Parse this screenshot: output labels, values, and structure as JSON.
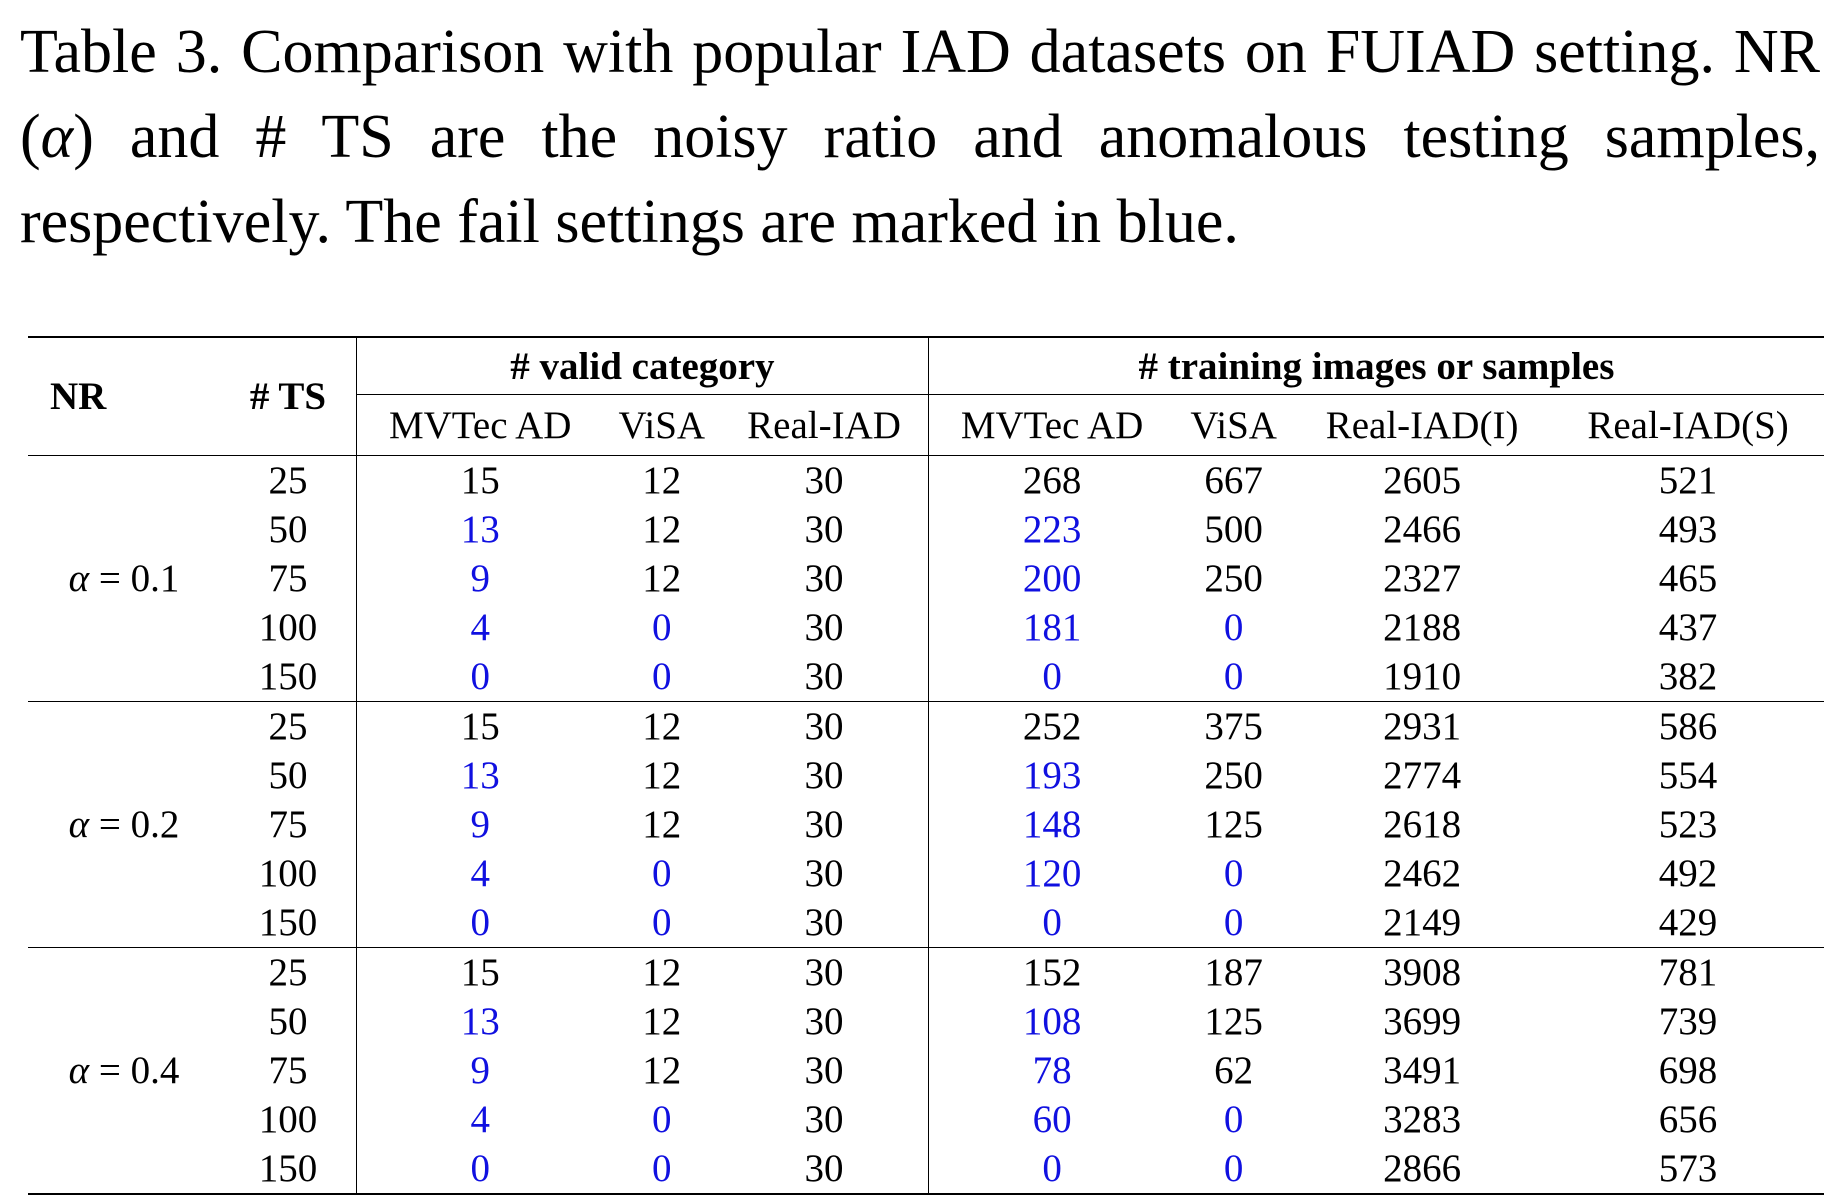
{
  "caption": {
    "part1": "Table 3.  Comparison with popular IAD datasets on FUIAD setting.  NR (",
    "alpha": "α",
    "part2": ") and # TS are the noisy ratio and anomalous testing samples, respectively. The fail settings are marked in blue."
  },
  "table": {
    "headers": {
      "nr": "NR",
      "ts": "# TS",
      "group_valid": "# valid category",
      "group_training": "# training images or samples",
      "columns": [
        "MVTec AD",
        "ViSA",
        "Real-IAD",
        "MVTec AD",
        "ViSA",
        "Real-IAD(I)",
        "Real-IAD(S)"
      ]
    },
    "fail_color": "#1010e0",
    "groups": [
      {
        "nr_symbol": "α",
        "nr_rest": " = 0.1",
        "rows": [
          {
            "ts": "25",
            "values": [
              "15",
              "12",
              "30",
              "268",
              "667",
              "2605",
              "521"
            ],
            "fail": [
              false,
              false,
              false,
              false,
              false,
              false,
              false
            ]
          },
          {
            "ts": "50",
            "values": [
              "13",
              "12",
              "30",
              "223",
              "500",
              "2466",
              "493"
            ],
            "fail": [
              true,
              false,
              false,
              true,
              false,
              false,
              false
            ]
          },
          {
            "ts": "75",
            "values": [
              "9",
              "12",
              "30",
              "200",
              "250",
              "2327",
              "465"
            ],
            "fail": [
              true,
              false,
              false,
              true,
              false,
              false,
              false
            ]
          },
          {
            "ts": "100",
            "values": [
              "4",
              "0",
              "30",
              "181",
              "0",
              "2188",
              "437"
            ],
            "fail": [
              true,
              true,
              false,
              true,
              true,
              false,
              false
            ]
          },
          {
            "ts": "150",
            "values": [
              "0",
              "0",
              "30",
              "0",
              "0",
              "1910",
              "382"
            ],
            "fail": [
              true,
              true,
              false,
              true,
              true,
              false,
              false
            ]
          }
        ]
      },
      {
        "nr_symbol": "α",
        "nr_rest": " = 0.2",
        "rows": [
          {
            "ts": "25",
            "values": [
              "15",
              "12",
              "30",
              "252",
              "375",
              "2931",
              "586"
            ],
            "fail": [
              false,
              false,
              false,
              false,
              false,
              false,
              false
            ]
          },
          {
            "ts": "50",
            "values": [
              "13",
              "12",
              "30",
              "193",
              "250",
              "2774",
              "554"
            ],
            "fail": [
              true,
              false,
              false,
              true,
              false,
              false,
              false
            ]
          },
          {
            "ts": "75",
            "values": [
              "9",
              "12",
              "30",
              "148",
              "125",
              "2618",
              "523"
            ],
            "fail": [
              true,
              false,
              false,
              true,
              false,
              false,
              false
            ]
          },
          {
            "ts": "100",
            "values": [
              "4",
              "0",
              "30",
              "120",
              "0",
              "2462",
              "492"
            ],
            "fail": [
              true,
              true,
              false,
              true,
              true,
              false,
              false
            ]
          },
          {
            "ts": "150",
            "values": [
              "0",
              "0",
              "30",
              "0",
              "0",
              "2149",
              "429"
            ],
            "fail": [
              true,
              true,
              false,
              true,
              true,
              false,
              false
            ]
          }
        ]
      },
      {
        "nr_symbol": "α",
        "nr_rest": " = 0.4",
        "rows": [
          {
            "ts": "25",
            "values": [
              "15",
              "12",
              "30",
              "152",
              "187",
              "3908",
              "781"
            ],
            "fail": [
              false,
              false,
              false,
              false,
              false,
              false,
              false
            ]
          },
          {
            "ts": "50",
            "values": [
              "13",
              "12",
              "30",
              "108",
              "125",
              "3699",
              "739"
            ],
            "fail": [
              true,
              false,
              false,
              true,
              false,
              false,
              false
            ]
          },
          {
            "ts": "75",
            "values": [
              "9",
              "12",
              "30",
              "78",
              "62",
              "3491",
              "698"
            ],
            "fail": [
              true,
              false,
              false,
              true,
              false,
              false,
              false
            ]
          },
          {
            "ts": "100",
            "values": [
              "4",
              "0",
              "30",
              "60",
              "0",
              "3283",
              "656"
            ],
            "fail": [
              true,
              true,
              false,
              true,
              true,
              false,
              false
            ]
          },
          {
            "ts": "150",
            "values": [
              "0",
              "0",
              "30",
              "0",
              "0",
              "2866",
              "573"
            ],
            "fail": [
              true,
              true,
              false,
              true,
              true,
              false,
              false
            ]
          }
        ]
      }
    ]
  }
}
